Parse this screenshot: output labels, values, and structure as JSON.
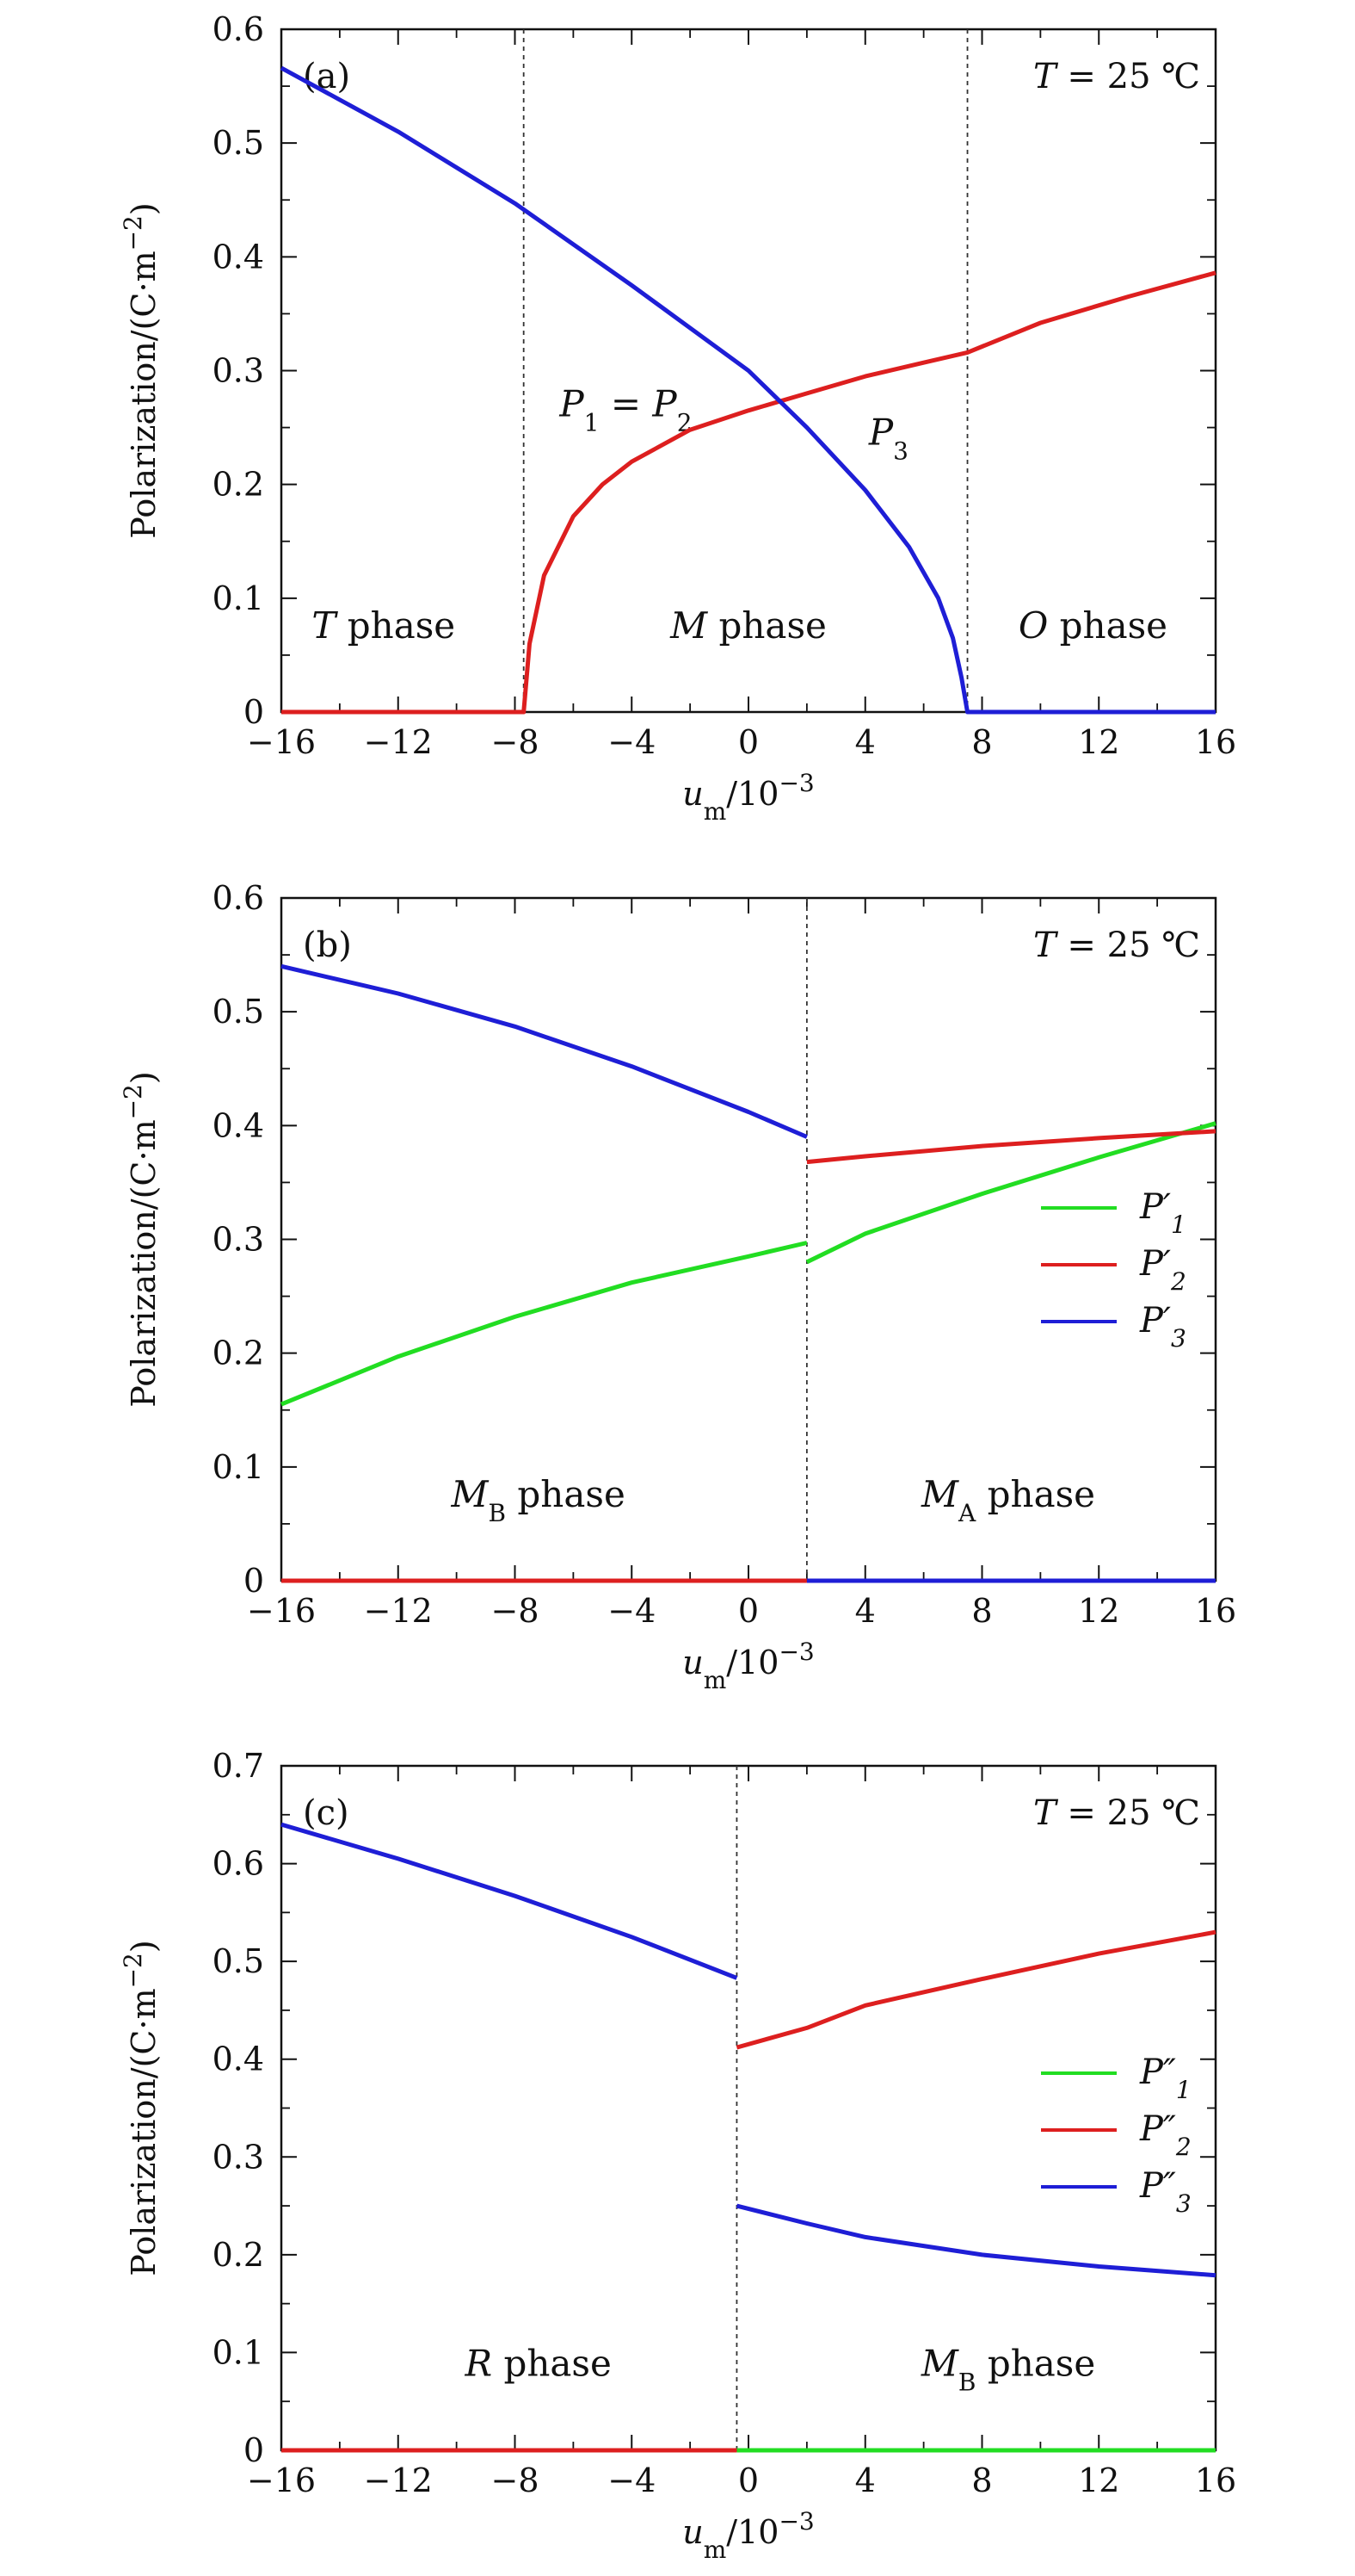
{
  "chart_data": [
    {
      "type": "line",
      "panel": "(a)",
      "temperature_label": "T = 25 ℃",
      "xlabel": "u_m/10^-3",
      "ylabel": "Polarization/(C·m^-2)",
      "xlim": [
        -16,
        16
      ],
      "ylim": [
        0,
        0.6
      ],
      "x_ticks": [
        "−16",
        "−12",
        "−8",
        "−4",
        "0",
        "4",
        "8",
        "12",
        "16"
      ],
      "y_ticks": [
        "0",
        "0.1",
        "0.2",
        "0.3",
        "0.4",
        "0.5",
        "0.6"
      ],
      "phase_boundaries": [
        -7.7,
        7.5
      ],
      "phase_labels": [
        {
          "text": "T phase",
          "x": -12.5,
          "y": 0.065
        },
        {
          "text": "M phase",
          "x": 0,
          "y": 0.065
        },
        {
          "text": "O phase",
          "x": 11.8,
          "y": 0.065
        }
      ],
      "annotations": [
        {
          "text": "P1 = P2",
          "x": -4.2,
          "y": 0.26
        },
        {
          "text": "P3",
          "x": 4.8,
          "y": 0.235
        }
      ],
      "series": [
        {
          "name": "P1 = P2",
          "color": "#dd1f1f",
          "x": [
            -16,
            -7.8,
            -7.7,
            -7.5,
            -7.0,
            -6.0,
            -5.0,
            -4.0,
            -2.0,
            0.0,
            2.0,
            4.0,
            6.0,
            7.5,
            10.0,
            13.0,
            16.0
          ],
          "y": [
            0,
            0,
            0,
            0.06,
            0.12,
            0.172,
            0.2,
            0.22,
            0.248,
            0.265,
            0.28,
            0.295,
            0.307,
            0.316,
            0.342,
            0.365,
            0.386
          ]
        },
        {
          "name": "P3",
          "color": "#1e1ed6",
          "x": [
            -16,
            -12,
            -8,
            -4,
            0,
            2,
            4,
            5.5,
            6.5,
            7.0,
            7.3,
            7.5,
            16
          ],
          "y": [
            0.566,
            0.51,
            0.447,
            0.375,
            0.3,
            0.25,
            0.195,
            0.145,
            0.1,
            0.065,
            0.03,
            0,
            0
          ]
        }
      ]
    },
    {
      "type": "line",
      "panel": "(b)",
      "temperature_label": "T = 25 ℃",
      "xlabel": "u_m/10^-3",
      "ylabel": "Polarization/(C·m^-2)",
      "xlim": [
        -16,
        16
      ],
      "ylim": [
        0,
        0.6
      ],
      "x_ticks": [
        "−16",
        "−12",
        "−8",
        "−4",
        "0",
        "4",
        "8",
        "12",
        "16"
      ],
      "y_ticks": [
        "0",
        "0.1",
        "0.2",
        "0.3",
        "0.4",
        "0.5",
        "0.6"
      ],
      "phase_boundaries": [
        2
      ],
      "phase_labels": [
        {
          "text": "MB phase",
          "x": -7.2,
          "y": 0.065
        },
        {
          "text": "MA phase",
          "x": 8.9,
          "y": 0.065
        }
      ],
      "legend": [
        "P′1",
        "P′2",
        "P′3"
      ],
      "series": [
        {
          "name": "P′1",
          "color": "#22dd22",
          "segments": [
            {
              "x": [
                -16,
                -12,
                -8,
                -4,
                0,
                2
              ],
              "y": [
                0.155,
                0.197,
                0.232,
                0.262,
                0.285,
                0.297
              ]
            },
            {
              "x": [
                2,
                4,
                8,
                12,
                16
              ],
              "y": [
                0.28,
                0.305,
                0.34,
                0.372,
                0.402
              ]
            }
          ]
        },
        {
          "name": "P′2",
          "color": "#dd1f1f",
          "segments": [
            {
              "x": [
                -16,
                2
              ],
              "y": [
                0,
                0
              ]
            },
            {
              "x": [
                2,
                4,
                8,
                12,
                16
              ],
              "y": [
                0.368,
                0.373,
                0.382,
                0.389,
                0.395
              ]
            }
          ]
        },
        {
          "name": "P′3",
          "color": "#1e1ed6",
          "segments": [
            {
              "x": [
                -16,
                -12,
                -8,
                -4,
                0,
                2
              ],
              "y": [
                0.54,
                0.516,
                0.487,
                0.452,
                0.412,
                0.39
              ]
            },
            {
              "x": [
                2,
                16
              ],
              "y": [
                0,
                0
              ]
            }
          ]
        }
      ]
    },
    {
      "type": "line",
      "panel": "(c)",
      "temperature_label": "T = 25 ℃",
      "xlabel": "u_m/10^-3",
      "ylabel": "Polarization/(C·m^-2)",
      "xlim": [
        -16,
        16
      ],
      "ylim": [
        0,
        0.7
      ],
      "x_ticks": [
        "−16",
        "−12",
        "−8",
        "−4",
        "0",
        "4",
        "8",
        "12",
        "16"
      ],
      "y_ticks": [
        "0",
        "0.1",
        "0.2",
        "0.3",
        "0.4",
        "0.5",
        "0.6",
        "0.7"
      ],
      "phase_boundaries": [
        -0.4
      ],
      "phase_labels": [
        {
          "text": "R phase",
          "x": -7.2,
          "y": 0.076
        },
        {
          "text": "MB phase",
          "x": 8.9,
          "y": 0.076
        }
      ],
      "legend": [
        "P″1",
        "P″2",
        "P″3"
      ],
      "series": [
        {
          "name": "P″1",
          "color": "#22dd22",
          "segments": [
            {
              "x": [
                -0.4,
                16
              ],
              "y": [
                0,
                0
              ]
            }
          ]
        },
        {
          "name": "P″2",
          "color": "#dd1f1f",
          "segments": [
            {
              "x": [
                -16,
                -0.4
              ],
              "y": [
                0,
                0
              ]
            },
            {
              "x": [
                -0.4,
                2,
                4,
                8,
                12,
                16
              ],
              "y": [
                0.412,
                0.432,
                0.455,
                0.482,
                0.508,
                0.53
              ]
            }
          ]
        },
        {
          "name": "P″3",
          "color": "#1e1ed6",
          "segments": [
            {
              "x": [
                -16,
                -12,
                -8,
                -4,
                -0.4
              ],
              "y": [
                0.64,
                0.605,
                0.567,
                0.525,
                0.483
              ]
            },
            {
              "x": [
                -0.4,
                2,
                4,
                8,
                12,
                16
              ],
              "y": [
                0.25,
                0.232,
                0.218,
                0.2,
                0.188,
                0.179
              ]
            }
          ]
        }
      ]
    }
  ]
}
